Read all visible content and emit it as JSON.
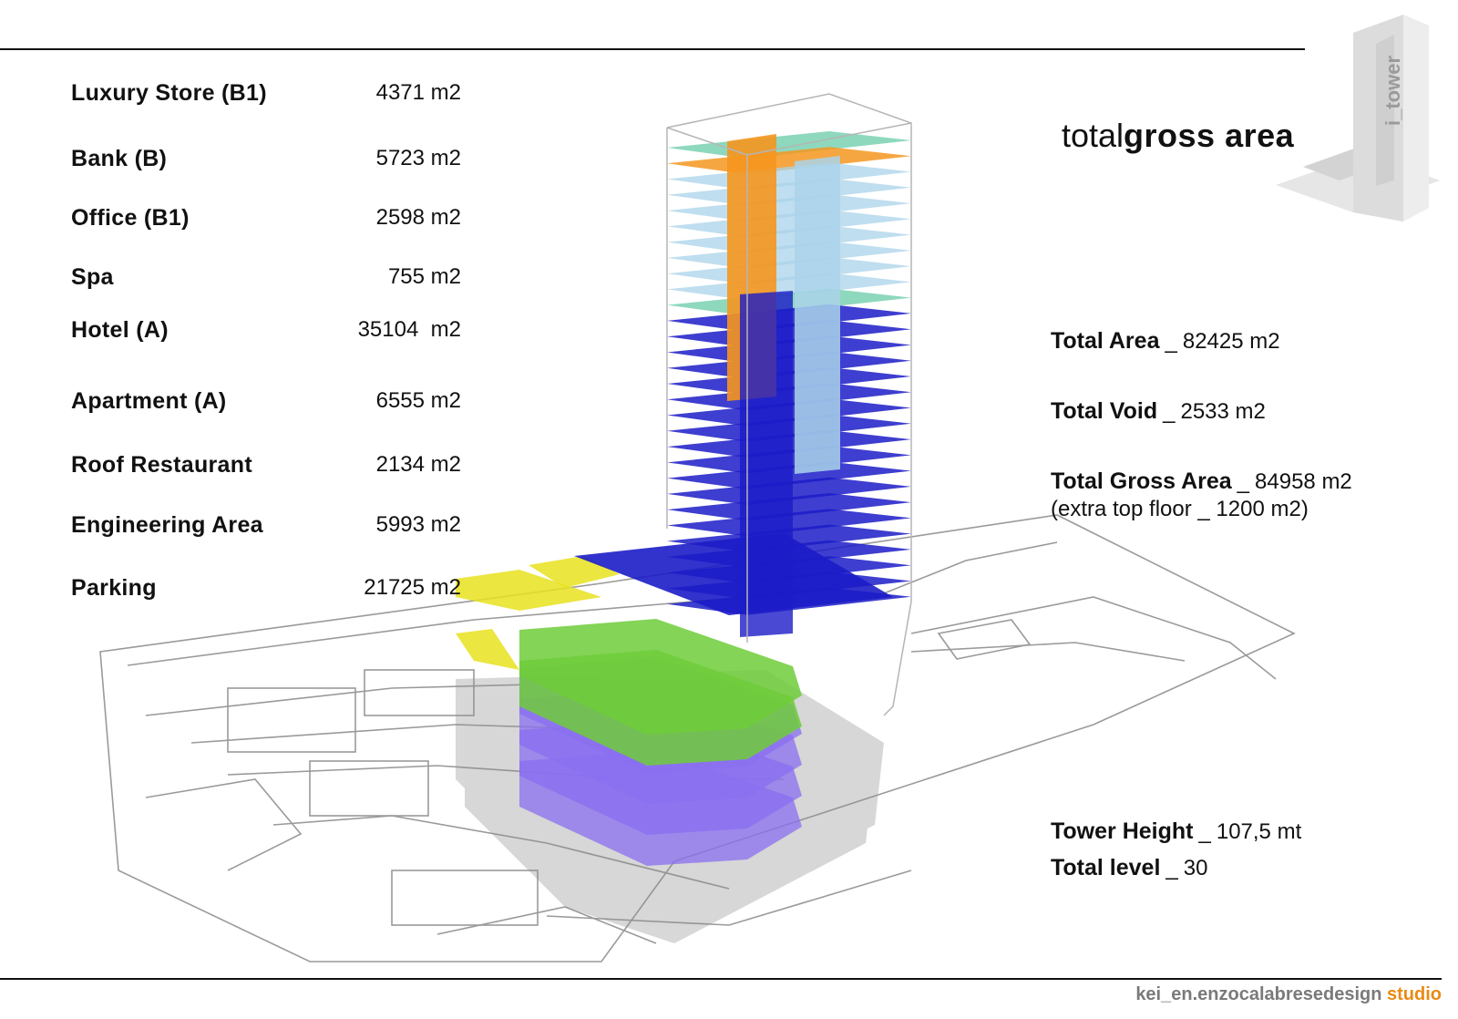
{
  "colors": {
    "rule": "#111111",
    "bank": "#f5961e",
    "roof_restaurant": "#5ec7a1",
    "apartment": "#aad3ea",
    "hotel": "#1c1cc8",
    "luxury_store": "#e8e21e",
    "office": "#6fcd3a",
    "parking": "#8a6ff0",
    "studio_accent": "#e98a14"
  },
  "logo": {
    "text": "i_tower"
  },
  "program": [
    {
      "name": "Luxury Store (B1)",
      "value": "4371 m2"
    },
    {
      "name": "Bank (B)",
      "value": "5723 m2"
    },
    {
      "name": "Office (B1)",
      "value": "2598 m2"
    },
    {
      "name": "Spa",
      "value": "755 m2"
    },
    {
      "name": "Hotel (A)",
      "value": "35104  m2"
    },
    {
      "name": "Apartment (A)",
      "value": "6555 m2"
    },
    {
      "name": "Roof Restaurant",
      "value": "2134 m2"
    },
    {
      "name": "Engineering Area",
      "value": "5993 m2"
    },
    {
      "name": "Parking",
      "value": "21725 m2"
    }
  ],
  "headline": {
    "light": "total",
    "bold": "gross area"
  },
  "totals": {
    "area_label": "Total Area",
    "area_value": "82425 m2",
    "void_label": "Total Void",
    "void_value": "2533 m2",
    "gross_label": "Total Gross Area",
    "gross_value": "84958 m2",
    "gross_note": "(extra top floor _ 1200 m2)",
    "separator": "_"
  },
  "tower": {
    "height_label": "Tower Height",
    "height_value": "107,5 mt",
    "levels_label": "Total level",
    "levels_value": "30"
  },
  "credit": {
    "main": "kei_en.enzocalabresedesign ",
    "accent": "studio"
  }
}
